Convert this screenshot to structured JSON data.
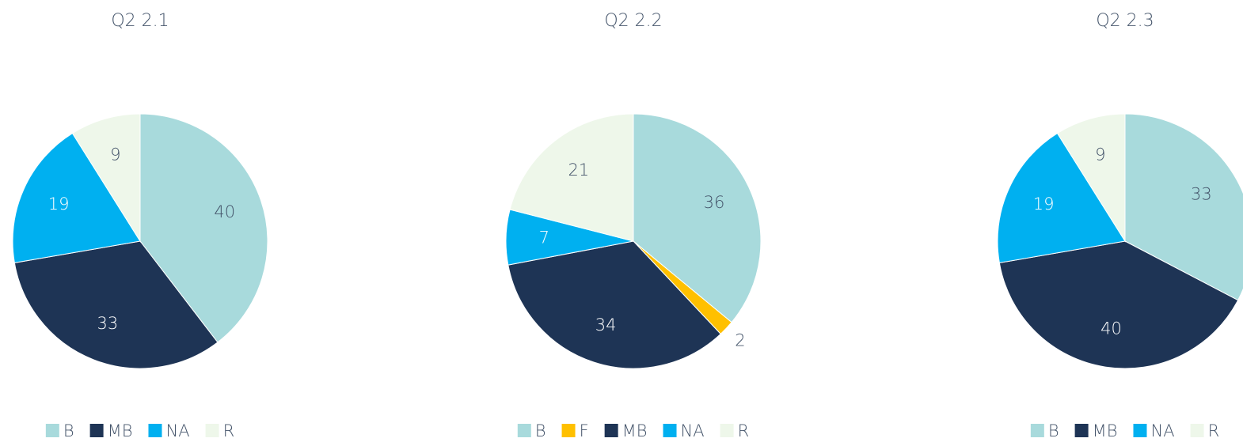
{
  "chart_data": [
    {
      "type": "pie",
      "title": "Q2 2.1",
      "categories": [
        "B",
        "MB",
        "NA",
        "R"
      ],
      "values": [
        40,
        33,
        19,
        9
      ],
      "colors": [
        "#a8dadc",
        "#1e3455",
        "#00b0f0",
        "#eef7ea"
      ],
      "legend": "bottom"
    },
    {
      "type": "pie",
      "title": "Q2 2.2",
      "categories": [
        "B",
        "F",
        "MB",
        "NA",
        "R"
      ],
      "values": [
        36,
        2,
        34,
        7,
        21
      ],
      "colors": [
        "#a8dadc",
        "#ffc000",
        "#1e3455",
        "#00b0f0",
        "#eef7ea"
      ],
      "legend": "bottom"
    },
    {
      "type": "pie",
      "title": "Q2 2.3",
      "categories": [
        "B",
        "MB",
        "NA",
        "R"
      ],
      "values": [
        33,
        40,
        19,
        9
      ],
      "colors": [
        "#a8dadc",
        "#1e3455",
        "#00b0f0",
        "#eef7ea"
      ],
      "legend": "bottom"
    }
  ]
}
